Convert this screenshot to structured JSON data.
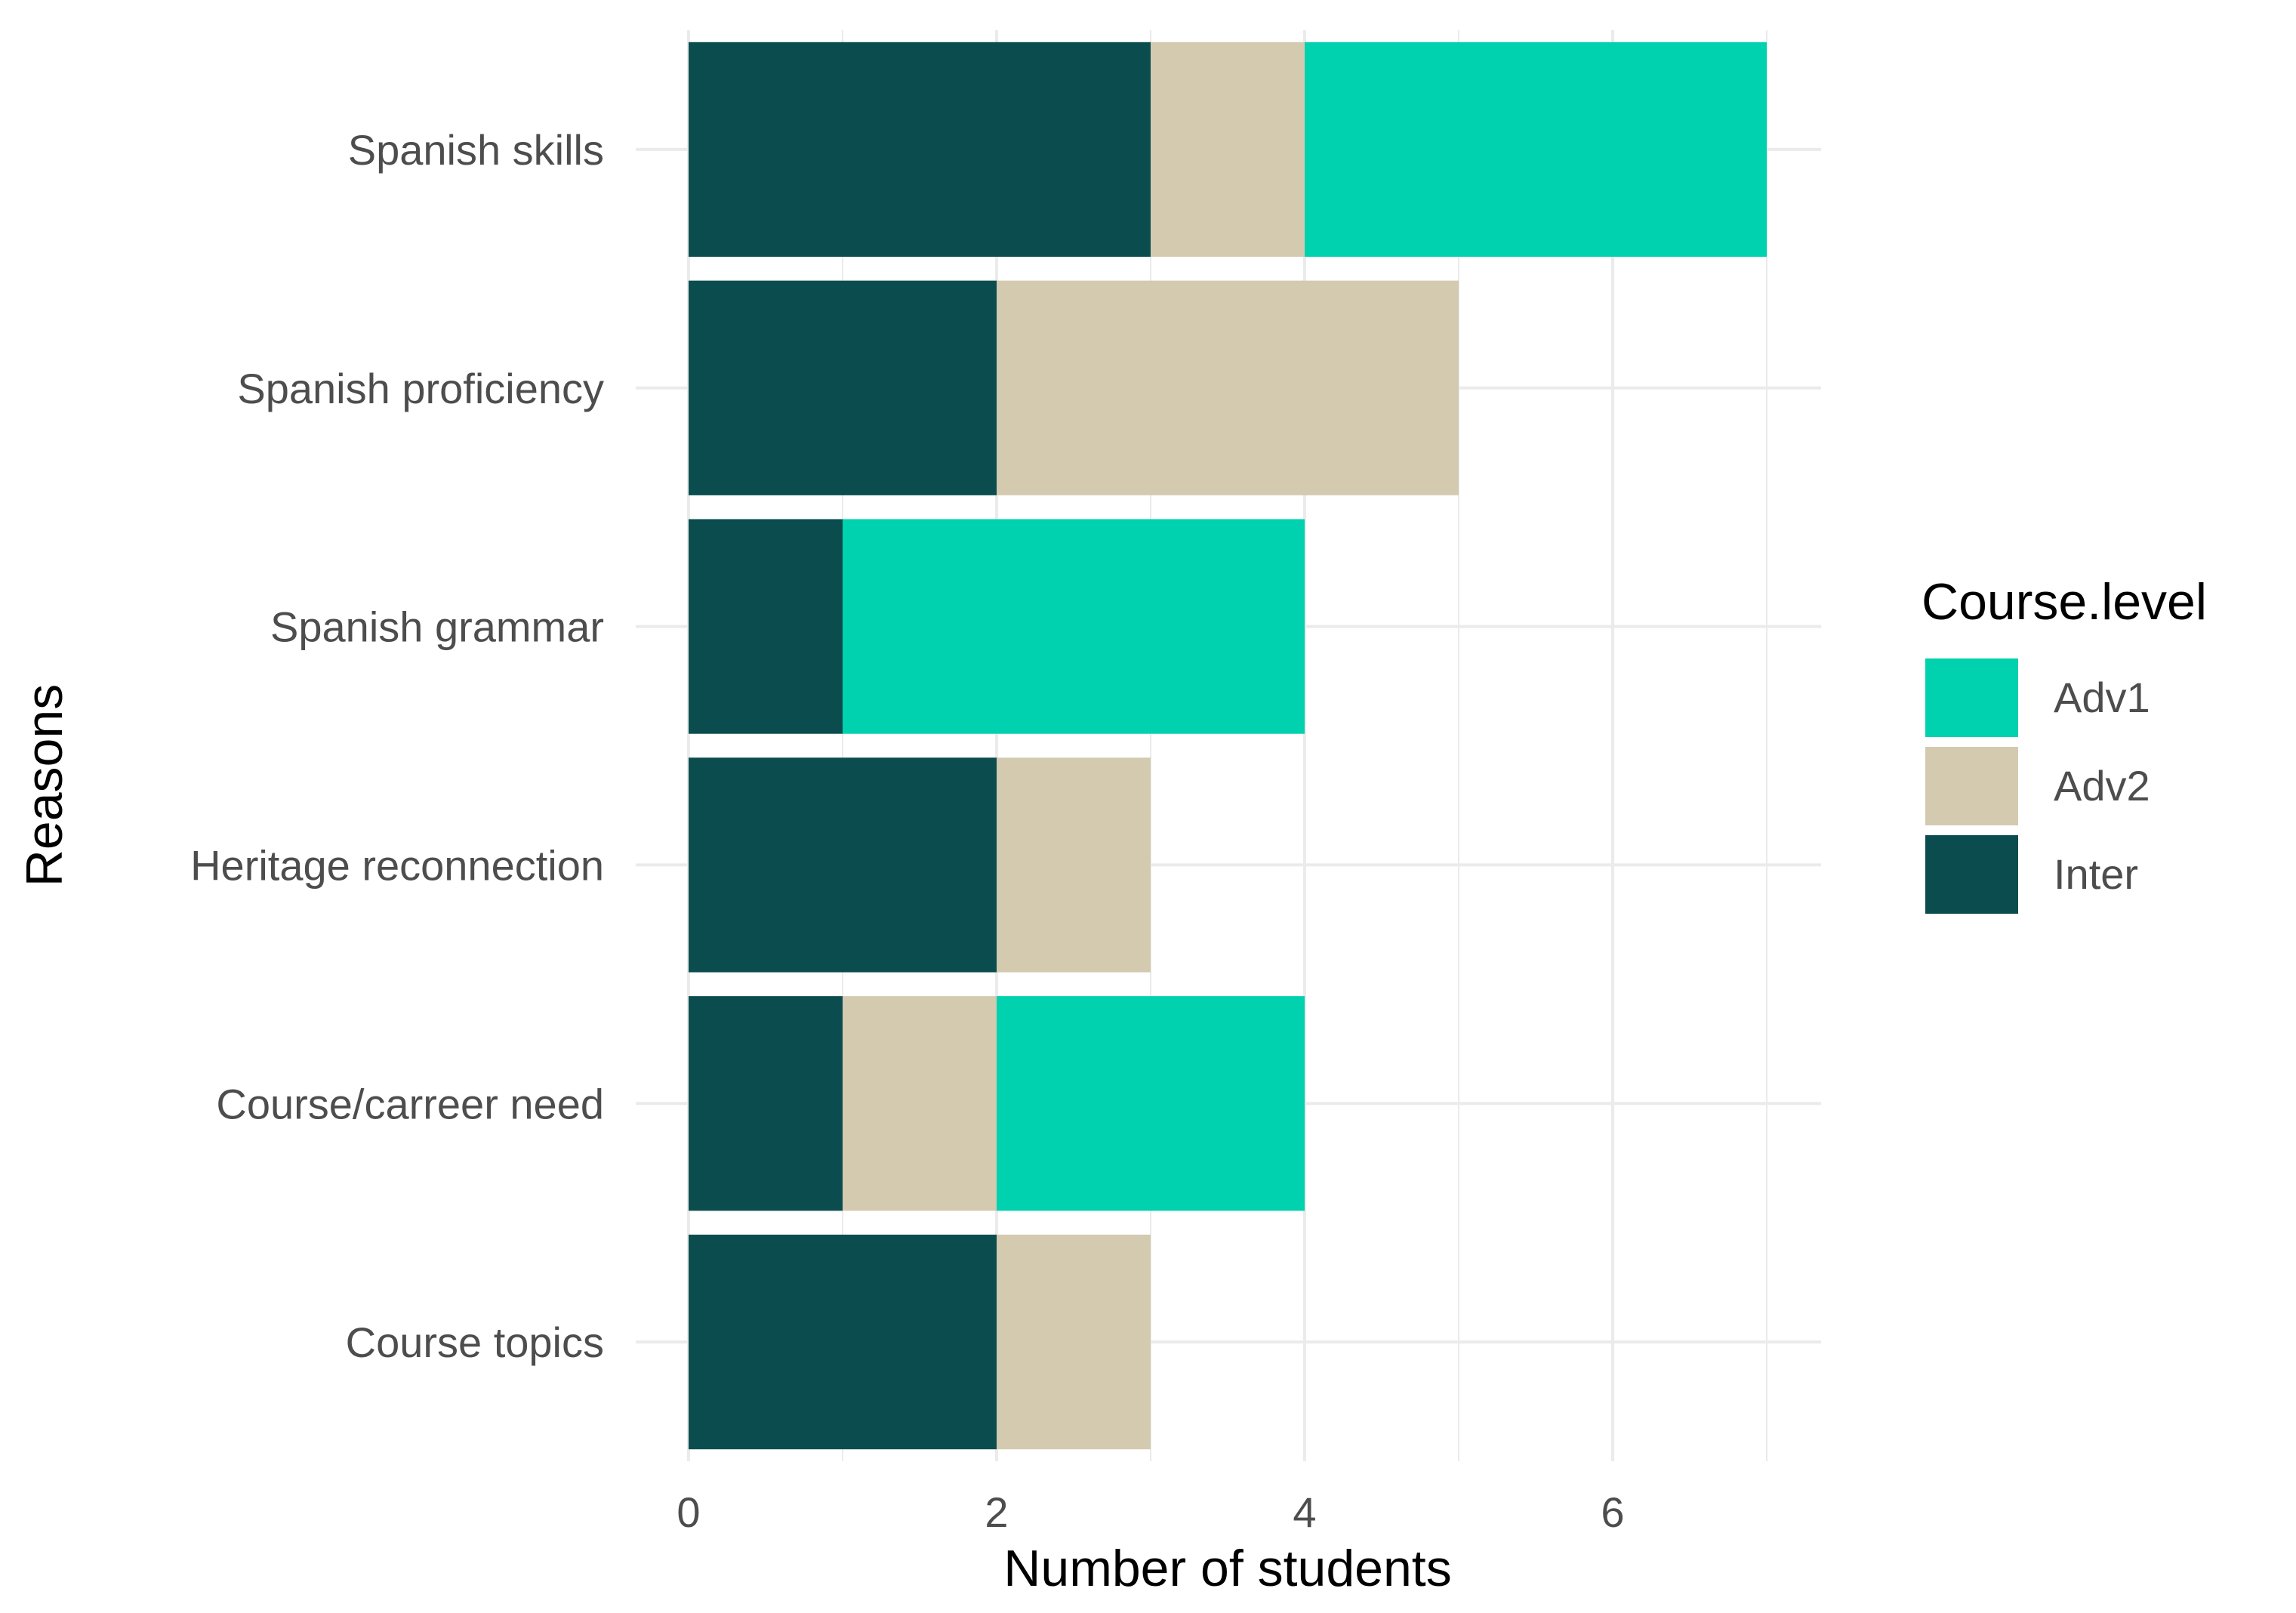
{
  "chart_data": {
    "type": "bar",
    "orientation": "horizontal",
    "stacked": true,
    "categories": [
      "Spanish skills",
      "Spanish proficiency",
      "Spanish grammar",
      "Heritage reconnection",
      "Course/carreer need",
      "Course topics"
    ],
    "series": [
      {
        "name": "Inter",
        "color": "#0b4d4f",
        "values": [
          3,
          2,
          1,
          2,
          1,
          2
        ]
      },
      {
        "name": "Adv2",
        "color": "#d3cab0",
        "values": [
          1,
          3,
          0,
          1,
          1,
          1
        ]
      },
      {
        "name": "Adv1",
        "color": "#00d1ae",
        "values": [
          3,
          0,
          3,
          0,
          2,
          0
        ]
      }
    ],
    "xlabel": "Number of students",
    "ylabel": "Reasons",
    "xlim": [
      0,
      7.3
    ],
    "xticks": [
      0,
      2,
      4,
      6
    ],
    "grid": true,
    "legend": {
      "title": "Course.level",
      "position": "right",
      "items": [
        {
          "name": "Adv1",
          "color": "#00d1ae"
        },
        {
          "name": "Adv2",
          "color": "#d3cab0"
        },
        {
          "name": "Inter",
          "color": "#0b4d4f"
        }
      ]
    }
  }
}
